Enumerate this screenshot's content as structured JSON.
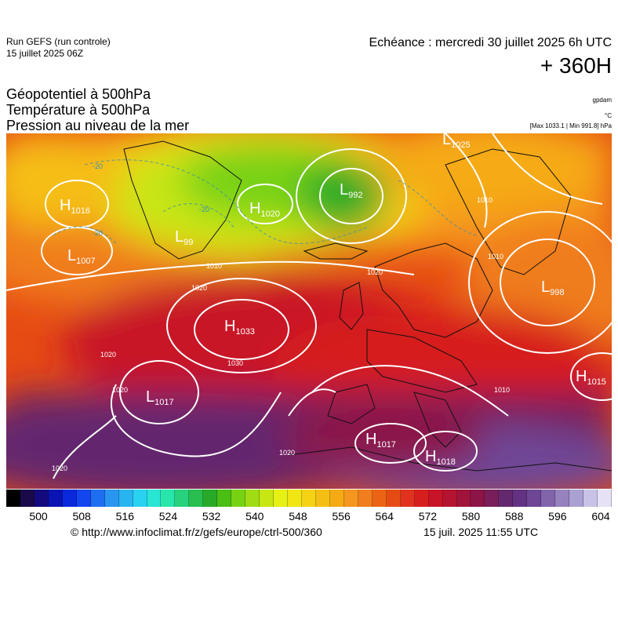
{
  "header": {
    "run_line1": "Run GEFS (run controle)",
    "run_line2": "15 juillet 2025 06Z",
    "echeance": "Echéance : mercredi 30 juillet 2025 6h UTC",
    "lead": "+ 360H"
  },
  "parameters": [
    "Géopotentiel à 500hPa",
    "Température à 500hPa",
    "Pression au niveau de la mer"
  ],
  "units": {
    "geopotential": "gpdam",
    "temperature": "°C",
    "pressure_range": "[Max 1033.1 | Min 991.8] hPa"
  },
  "pressure_systems": [
    {
      "type": "H",
      "value": "1016"
    },
    {
      "type": "L",
      "value": "1007"
    },
    {
      "type": "L",
      "value": "99"
    },
    {
      "type": "H",
      "value": "1020"
    },
    {
      "type": "L",
      "value": "992"
    },
    {
      "type": "L",
      "value": "1025"
    },
    {
      "type": "H",
      "value": "1033"
    },
    {
      "type": "L",
      "value": "1017"
    },
    {
      "type": "L",
      "value": "998"
    },
    {
      "type": "H",
      "value": "1015"
    },
    {
      "type": "H",
      "value": "1017"
    },
    {
      "type": "H",
      "value": "1018"
    }
  ],
  "isobar_labels": [
    "1010",
    "1020",
    "1030",
    "1020",
    "1020",
    "1020",
    "1020",
    "1010",
    "1010",
    "1010",
    "1020"
  ],
  "temperature_labels": [
    "-20",
    "-20",
    "-20"
  ],
  "colorbar": {
    "ticks": [
      "500",
      "508",
      "516",
      "524",
      "532",
      "540",
      "548",
      "556",
      "564",
      "572",
      "580",
      "588",
      "596",
      "604"
    ],
    "colors": [
      "#000000",
      "#1a0a4a",
      "#140a80",
      "#0a14b4",
      "#0a28dc",
      "#1446f0",
      "#1e6ef0",
      "#2896f0",
      "#28b4f0",
      "#28d2f0",
      "#28e6d2",
      "#28e6aa",
      "#28d27d",
      "#28be50",
      "#28aa28",
      "#4bbe14",
      "#78d214",
      "#a0dc14",
      "#c8e614",
      "#e6f014",
      "#f0e614",
      "#f5d214",
      "#f5be14",
      "#f5aa14",
      "#f5961e",
      "#f07d1e",
      "#eb6414",
      "#e64b14",
      "#e1321e",
      "#d71e1e",
      "#c81428",
      "#b41432",
      "#a0143c",
      "#8c1446",
      "#781e5a",
      "#64286e",
      "#643282",
      "#6e4696",
      "#8264aa",
      "#9682be",
      "#aaa0d2",
      "#c8c3e6",
      "#e6e1f5"
    ]
  },
  "footer": {
    "credit": "© http://www.infoclimat.fr/z/gefs/europe/ctrl-500/360",
    "timestamp": "15 juil. 2025 11:55 UTC"
  }
}
